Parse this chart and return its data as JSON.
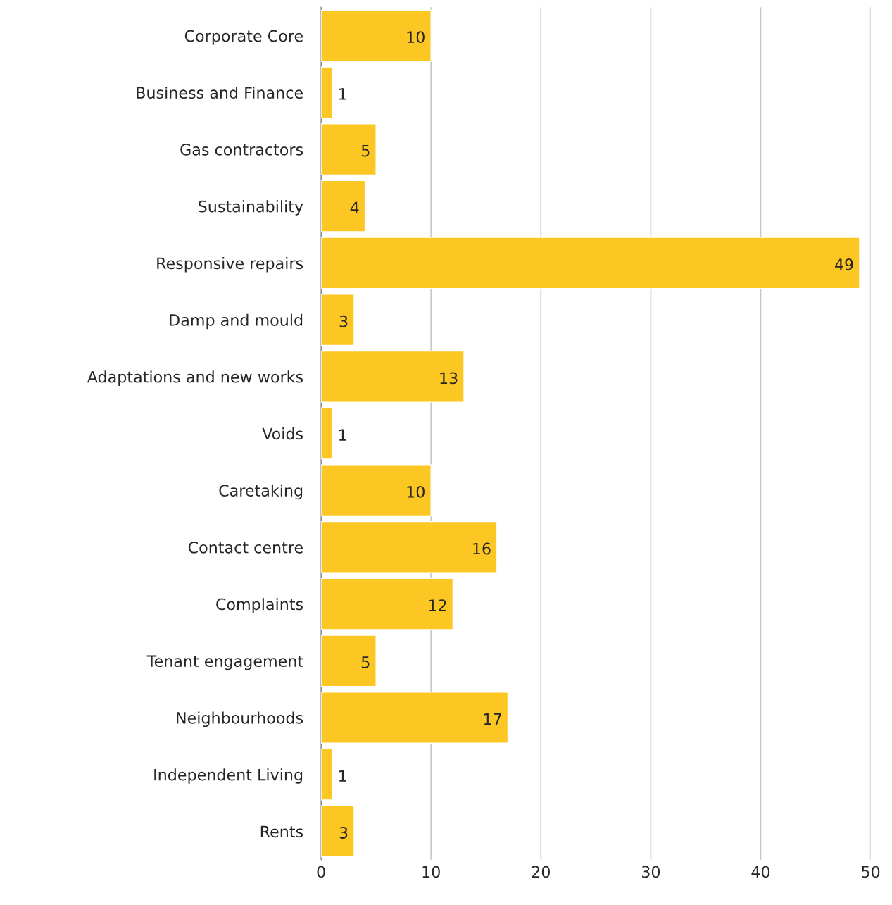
{
  "chart_data": {
    "type": "bar",
    "orientation": "horizontal",
    "categories": [
      "Corporate Core",
      "Business and Finance",
      "Gas contractors",
      "Sustainability",
      "Responsive repairs",
      "Damp and mould",
      "Adaptations and new works",
      "Voids",
      "Caretaking",
      "Contact centre",
      "Complaints",
      "Tenant engagement",
      "Neighbourhoods",
      "Independent Living",
      "Rents"
    ],
    "values": [
      10,
      1,
      5,
      4,
      49,
      3,
      13,
      1,
      10,
      16,
      12,
      5,
      17,
      1,
      3
    ],
    "color": "#fcc623",
    "xlim": [
      0,
      50
    ],
    "xticks": [
      0,
      10,
      20,
      30,
      40,
      50
    ],
    "grid": "x",
    "data_labels": true
  }
}
